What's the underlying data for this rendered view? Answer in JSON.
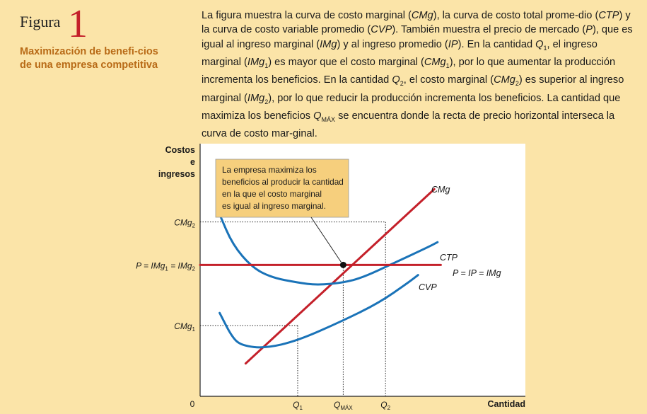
{
  "figure": {
    "label": "Figura",
    "number": "1",
    "title": "Maximización de benefi-cios de una empresa competitiva",
    "caption_parts": [
      {
        "t": "La figura muestra la curva de costo marginal ("
      },
      {
        "t": "CMg",
        "i": true
      },
      {
        "t": "), la curva de costo total prome-dio ("
      },
      {
        "t": "CTP",
        "i": true
      },
      {
        "t": ") y la curva de costo variable promedio ("
      },
      {
        "t": "CVP",
        "i": true
      },
      {
        "t": "). También muestra el precio de mercado ("
      },
      {
        "t": "P",
        "i": true
      },
      {
        "t": "), que es igual al ingreso marginal ("
      },
      {
        "t": "IMg",
        "i": true
      },
      {
        "t": ") y al ingreso promedio ("
      },
      {
        "t": "IP",
        "i": true
      },
      {
        "t": "). En la cantidad "
      },
      {
        "t": "Q",
        "i": true
      },
      {
        "t": "1",
        "sub": true
      },
      {
        "t": ", el ingreso marginal ("
      },
      {
        "t": "IMg",
        "i": true
      },
      {
        "t": "1",
        "sub": true
      },
      {
        "t": ") es mayor que el costo marginal ("
      },
      {
        "t": "CMg",
        "i": true
      },
      {
        "t": "1",
        "sub": true
      },
      {
        "t": "), por lo que aumentar la producción incrementa los beneficios. En la cantidad "
      },
      {
        "t": "Q",
        "i": true
      },
      {
        "t": "2",
        "sub": true
      },
      {
        "t": ", el costo marginal ("
      },
      {
        "t": "CMg",
        "i": true
      },
      {
        "t": "2",
        "sub": true
      },
      {
        "t": ") es superior al ingreso marginal ("
      },
      {
        "t": "IMg",
        "i": true
      },
      {
        "t": "2",
        "sub": true
      },
      {
        "t": "), por lo que reducir la producción incrementa los beneficios. La cantidad que maximiza los beneficios "
      },
      {
        "t": "Q",
        "i": true
      },
      {
        "t": "MÁX",
        "sub": true
      },
      {
        "t": " se encuentra donde la recta de precio horizontal interseca la curva de costo mar-ginal."
      }
    ]
  },
  "chart_data": {
    "type": "line",
    "ylabel": [
      "Costos",
      "e",
      "ingresos"
    ],
    "xlabel": "Cantidad",
    "origin_label": "0",
    "xlim": [
      0,
      10
    ],
    "ylim": [
      0,
      10
    ],
    "x_ticks": [
      {
        "label": "Q",
        "sub": "1",
        "x": 3.0
      },
      {
        "label": "Q",
        "sub": "MÁX",
        "x": 4.4
      },
      {
        "label": "Q",
        "sub": "2",
        "x": 5.7
      }
    ],
    "y_ticks": [
      {
        "label": "CMg",
        "sub": "2",
        "y": 6.9
      },
      {
        "label": "P = IMg",
        "sub": "1",
        "suffix": " = IMg",
        "sub2": "2",
        "y": 5.2
      },
      {
        "label": "CMg",
        "sub": "1",
        "y": 2.8
      }
    ],
    "series": [
      {
        "name": "CMg",
        "color": "#c4202a",
        "points": [
          [
            1.4,
            1.3
          ],
          [
            5.7,
            6.9
          ]
        ],
        "end_label": "CMg"
      },
      {
        "name": "CTP",
        "color": "#1a73b8",
        "points": [
          [
            0.6,
            7.2
          ],
          [
            1.0,
            6.0
          ],
          [
            1.6,
            5.1
          ],
          [
            2.2,
            4.7
          ],
          [
            3.0,
            4.5
          ],
          [
            3.6,
            4.4
          ],
          [
            4.4,
            4.5
          ],
          [
            5.0,
            4.7
          ],
          [
            6.0,
            5.3
          ],
          [
            7.0,
            5.9
          ],
          [
            7.3,
            6.1
          ]
        ],
        "end_label": "CTP"
      },
      {
        "name": "CVP",
        "color": "#1a73b8",
        "points": [
          [
            0.6,
            3.3
          ],
          [
            1.0,
            2.3
          ],
          [
            1.3,
            2.0
          ],
          [
            2.0,
            1.9
          ],
          [
            3.0,
            2.2
          ],
          [
            4.4,
            3.0
          ],
          [
            5.5,
            3.7
          ],
          [
            6.4,
            4.5
          ],
          [
            6.7,
            4.8
          ]
        ],
        "end_label": "CVP"
      },
      {
        "name": "P = IP = IMg",
        "color": "#c4202a",
        "points": [
          [
            0,
            5.2
          ],
          [
            7.4,
            5.2
          ]
        ],
        "end_label": "P = IP = IMg",
        "end_sub": ""
      }
    ],
    "intersection": {
      "x": 4.4,
      "y": 5.2
    },
    "annotation": "La empresa maximiza los beneficios al producir la cantidad en la que el costo marginal es igual al ingreso marginal.",
    "annotation_lines": [
      "La empresa maximiza los",
      "beneficios al producir la cantidad",
      "en la que el costo marginal",
      "es igual al ingreso marginal."
    ],
    "grid": false,
    "colors": {
      "red": "#c4202a",
      "blue": "#1a73b8",
      "callout": "#f6cf7d"
    }
  }
}
